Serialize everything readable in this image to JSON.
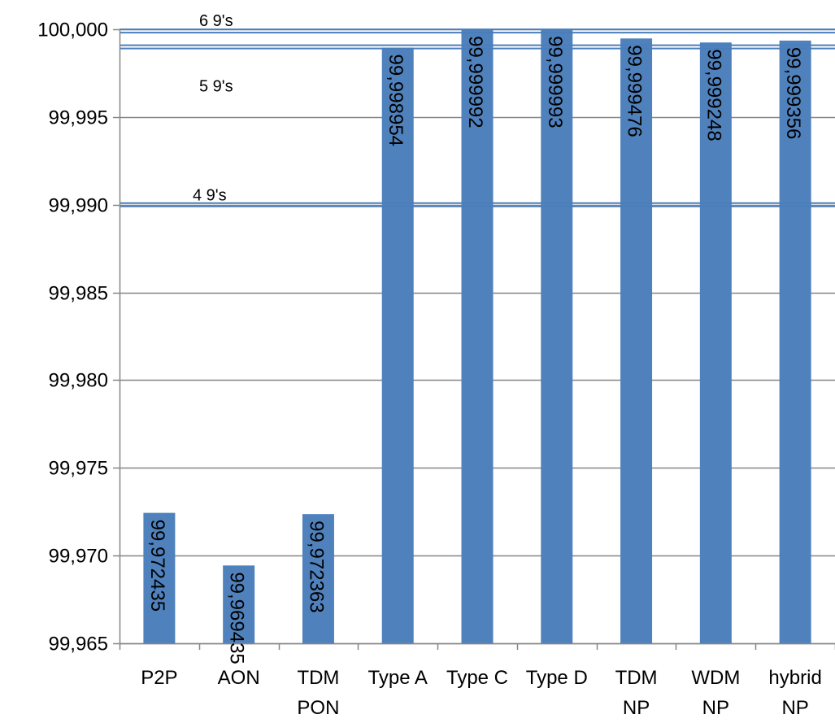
{
  "chart_data": {
    "type": "bar",
    "categories": [
      [
        "P2P"
      ],
      [
        "AON"
      ],
      [
        "TDM",
        "PON"
      ],
      [
        "Type A"
      ],
      [
        "Type C"
      ],
      [
        "Type D"
      ],
      [
        "TDM",
        "NP"
      ],
      [
        "WDM",
        "NP"
      ],
      [
        "hybrid",
        "NP"
      ]
    ],
    "values": [
      99.972435,
      99.969435,
      99.972363,
      99.998954,
      99.999992,
      99.999993,
      99.999476,
      99.999248,
      99.999356
    ],
    "value_labels": [
      "99,972435",
      "99,969435",
      "99,972363",
      "99,998954",
      "99,999992",
      "99,999993",
      "99,999476",
      "99,999248",
      "99,999356"
    ],
    "ylim": [
      99.965,
      100.0
    ],
    "yticks": [
      99.965,
      99.97,
      99.975,
      99.98,
      99.985,
      99.99,
      99.995,
      100.0
    ],
    "ytick_labels": [
      "99,965",
      "99,970",
      "99,975",
      "99,980",
      "99,985",
      "99,990",
      "99,995",
      "100,000"
    ],
    "grid": true,
    "bar_color": "#4F81BD",
    "reference_lines": [
      {
        "label": "6 9's",
        "value": 99.9999
      },
      {
        "label": "5 9's",
        "value": 99.999
      },
      {
        "label": "4 9's",
        "value": 99.99
      }
    ],
    "reference_line_color": "#4A7EBB",
    "title": "",
    "xlabel": "",
    "ylabel": ""
  }
}
